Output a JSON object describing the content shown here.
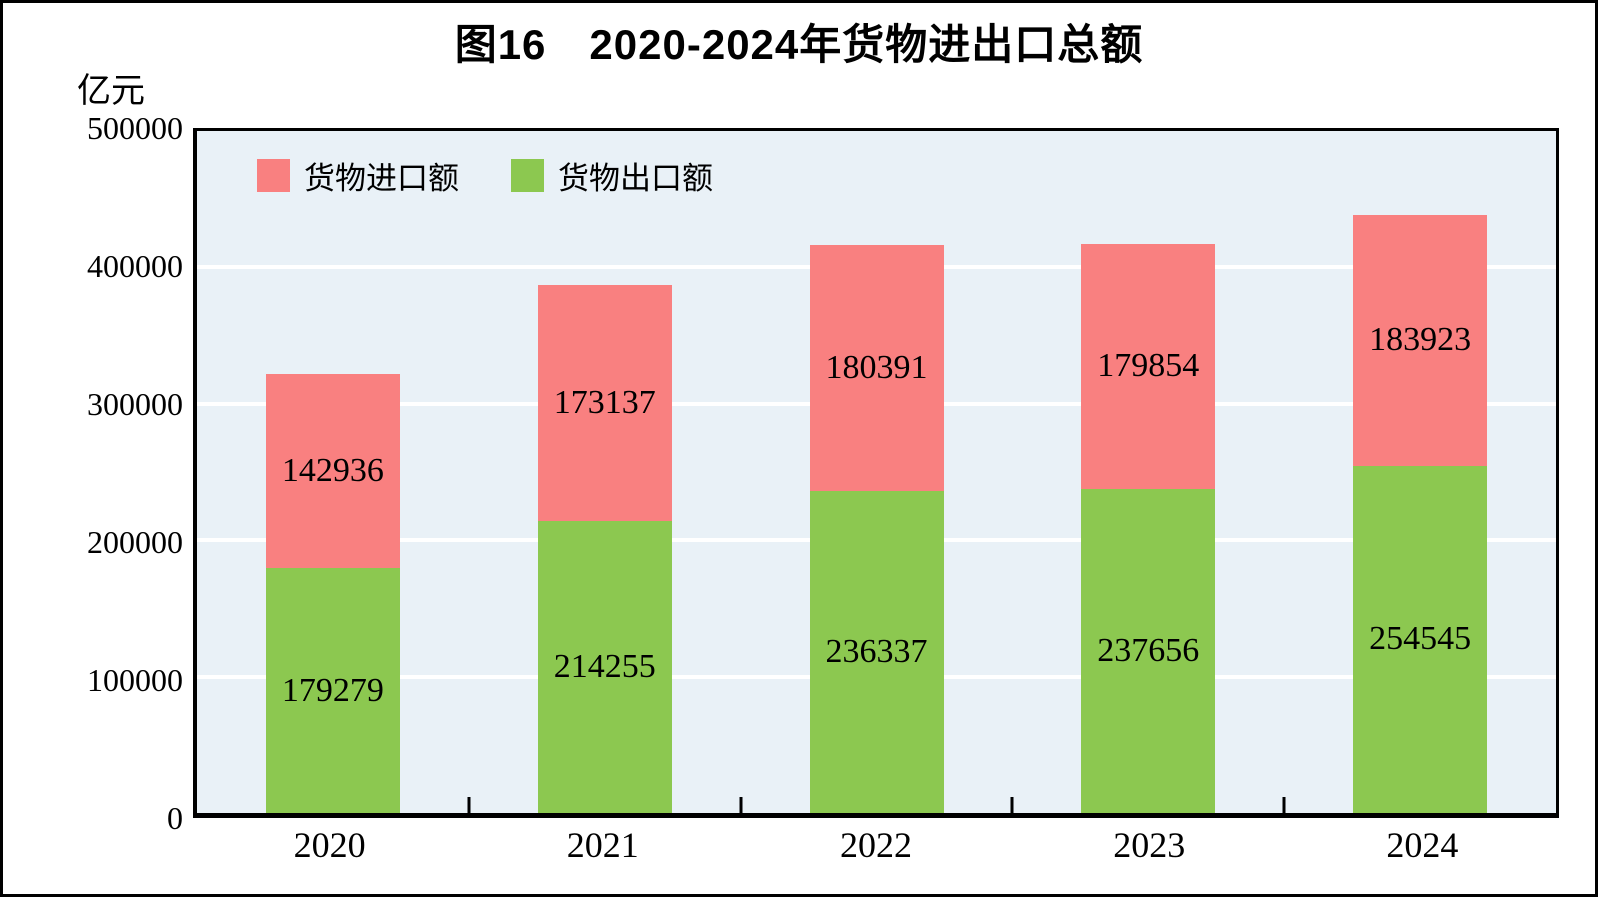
{
  "chart_data": {
    "type": "bar",
    "stacked": true,
    "title": "图16　2020-2024年货物进出口总额",
    "unit_label": "亿元",
    "categories": [
      "2020",
      "2021",
      "2022",
      "2023",
      "2024"
    ],
    "series": [
      {
        "name": "货物进口额",
        "color": "#F98080",
        "values": [
          142936,
          173137,
          180391,
          179854,
          183923
        ]
      },
      {
        "name": "货物出口额",
        "color": "#8CC850",
        "values": [
          179279,
          214255,
          236337,
          237656,
          254545
        ]
      }
    ],
    "ylim": [
      0,
      500000
    ],
    "yticks": [
      0,
      100000,
      200000,
      300000,
      400000,
      500000
    ],
    "gridline_values": [
      100000,
      200000,
      300000,
      400000
    ],
    "grid": "horizontal-white",
    "gridline_color": "#FFFFFF",
    "legend_position": "top-left-inside",
    "plot_background": "#E9F1F7",
    "frame_color": "#000000"
  }
}
